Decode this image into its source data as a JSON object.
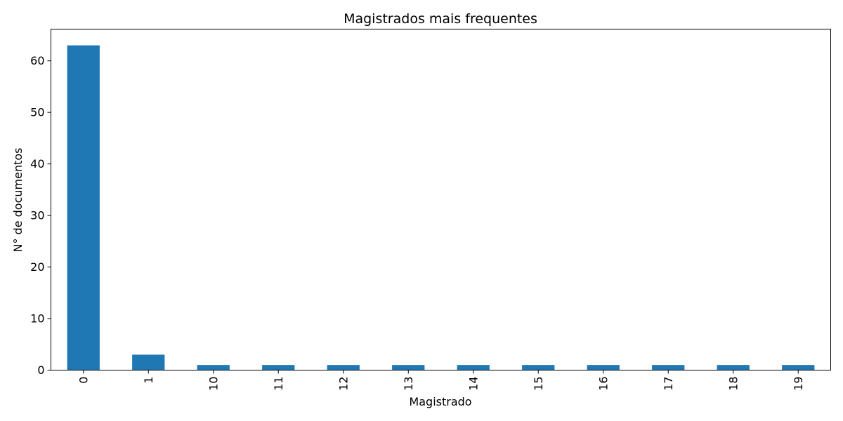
{
  "chart_data": {
    "type": "bar",
    "title": "Magistrados mais frequentes",
    "xlabel": "Magistrado",
    "ylabel": "N° de documentos",
    "categories": [
      "0",
      "1",
      "10",
      "11",
      "12",
      "13",
      "14",
      "15",
      "16",
      "17",
      "18",
      "19"
    ],
    "values": [
      63,
      3,
      1,
      1,
      1,
      1,
      1,
      1,
      1,
      1,
      1,
      1
    ],
    "ylim": [
      0,
      66.15
    ],
    "yticks": [
      0,
      10,
      20,
      30,
      40,
      50,
      60
    ],
    "grid": false,
    "legend": "none",
    "bar_color": "#1f77b4"
  }
}
